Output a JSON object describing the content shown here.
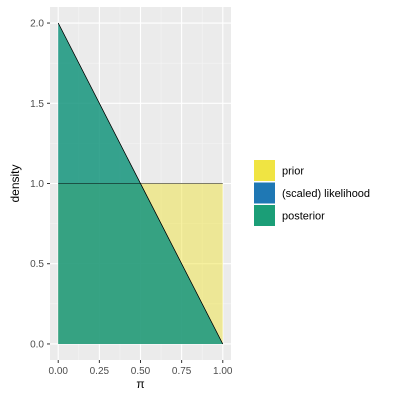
{
  "chart_data": {
    "type": "area",
    "xlabel": "π",
    "ylabel": "density",
    "xlim": [
      -0.05,
      1.05
    ],
    "ylim": [
      -0.1,
      2.1
    ],
    "x_ticks": [
      0.0,
      0.25,
      0.5,
      0.75,
      1.0
    ],
    "x_tick_labels": [
      "0.00",
      "0.25",
      "0.50",
      "0.75",
      "1.00"
    ],
    "y_ticks": [
      0.0,
      0.5,
      1.0,
      1.5,
      2.0
    ],
    "y_tick_labels": [
      "0.0",
      "0.5",
      "1.0",
      "1.5",
      "2.0"
    ],
    "grid": true,
    "legend_position": "right",
    "series": [
      {
        "name": "prior",
        "color": "#f0e442",
        "x": [
          0,
          1
        ],
        "y": [
          1,
          1
        ]
      },
      {
        "name": "(scaled) likelihood",
        "color": "#1f78b4",
        "x": [
          0,
          1
        ],
        "y": [
          2,
          0
        ]
      },
      {
        "name": "posterior",
        "color": "#1b9e77",
        "x": [
          0,
          1
        ],
        "y": [
          2,
          0
        ]
      }
    ]
  }
}
